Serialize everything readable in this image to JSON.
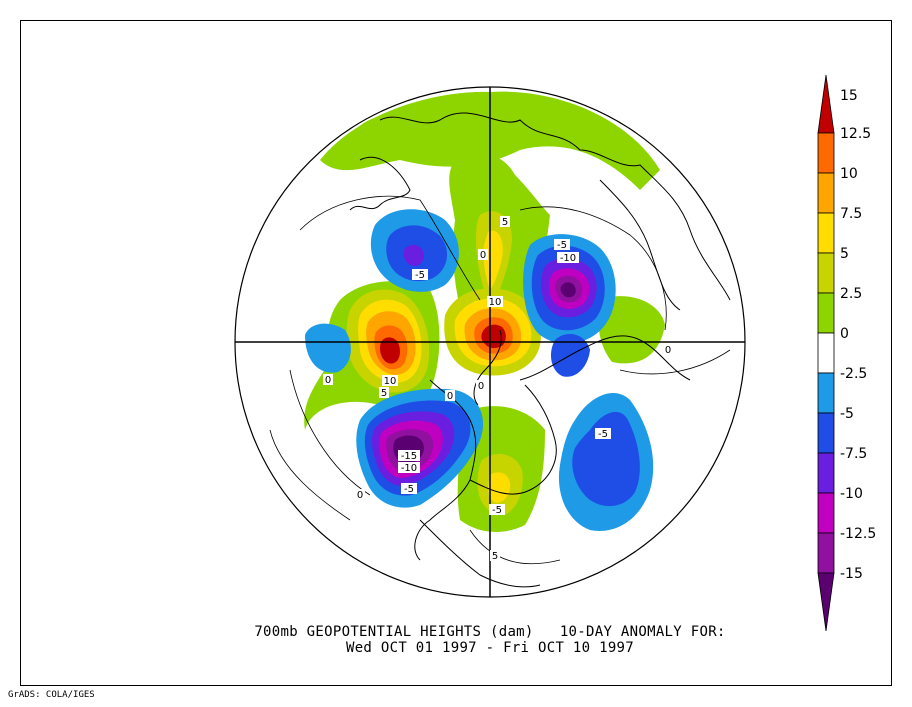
{
  "map": {
    "title_line1": "700mb GEOPOTENTIAL HEIGHTS (dam)   10-DAY ANOMALY FOR:",
    "title_line2": "Wed OCT 01 1997 - Fri OCT 10 1997",
    "credit": "GrADS: COLA/IGES",
    "colorbar": {
      "labels": [
        "15",
        "12.5",
        "10",
        "7.5",
        "5",
        "2.5",
        "0",
        "-2.5",
        "-5",
        "-7.5",
        "-10",
        "-12.5",
        "-15"
      ],
      "colors": [
        "#c00000",
        "#ff6a00",
        "#ffa500",
        "#ffdd00",
        "#c8d400",
        "#8ed500",
        "#ffffff",
        "#1f9ae6",
        "#1e4ee6",
        "#6a1ee0",
        "#c000c0",
        "#9010a0",
        "#5a0070"
      ]
    },
    "contour_labels": [
      "5",
      "0",
      "-5",
      "-5",
      "-10",
      "10",
      "0",
      "10",
      "5",
      "0",
      "-5",
      "-5",
      "-15",
      "-10",
      "-5",
      "5",
      "0",
      "0",
      "0"
    ],
    "colors": {
      "land_outline": "#000000",
      "green": "#8ed500",
      "olive": "#c8d400",
      "yellow": "#ffdd00",
      "orange": "#ffa500",
      "dark_orange": "#ff6a00",
      "red": "#c00000",
      "light_blue": "#1f9ae6",
      "blue": "#1e4ee6",
      "violet": "#6a1ee0",
      "magenta": "#c000c0",
      "purple": "#9010a0",
      "dark_purple": "#5a0070"
    }
  }
}
